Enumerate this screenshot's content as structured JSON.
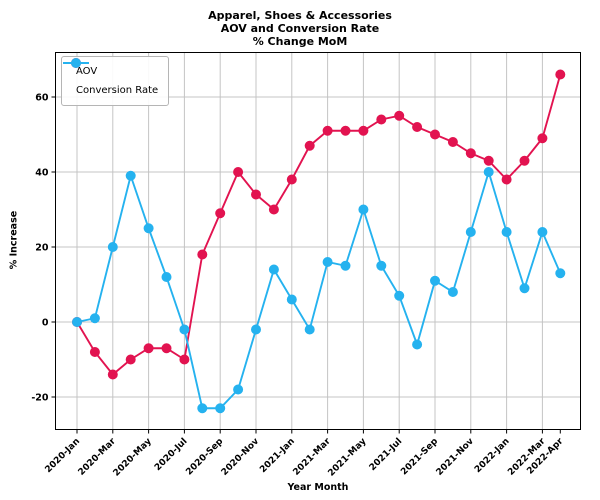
{
  "title": {
    "line1": "Apparel, Shoes & Accessories",
    "line2": "AOV and Conversion Rate",
    "line3": "% Change MoM"
  },
  "chart_data": {
    "type": "line",
    "title": "Apparel, Shoes & Accessories\nAOV and Conversion Rate\n% Change MoM",
    "xlabel": "Year Month",
    "ylabel": "% Increase",
    "x": [
      "2020-Jan",
      "2020-Feb",
      "2020-Mar",
      "2020-Apr",
      "2020-May",
      "2020-Jun",
      "2020-Jul",
      "2020-Aug",
      "2020-Sep",
      "2020-Oct",
      "2020-Nov",
      "2020-Dec",
      "2021-Jan",
      "2021-Feb",
      "2021-Mar",
      "2021-Apr",
      "2021-May",
      "2021-Jun",
      "2021-Jul",
      "2021-Aug",
      "2021-Sep",
      "2021-Oct",
      "2021-Nov",
      "2021-Dec",
      "2022-Jan",
      "2022-Feb",
      "2022-Mar",
      "2022-Apr"
    ],
    "x_tick_indices": [
      0,
      2,
      4,
      6,
      8,
      10,
      12,
      14,
      16,
      18,
      20,
      22,
      24,
      26,
      27
    ],
    "x_tick_labels": [
      "2020-Jan",
      "2020-Mar",
      "2020-May",
      "2020-Jul",
      "2020-Sep",
      "2020-Nov",
      "2021-Jan",
      "2021-Mar",
      "2021-May",
      "2021-Jul",
      "2021-Sep",
      "2021-Nov",
      "2022-Jan",
      "2022-Mar",
      "2022-Apr"
    ],
    "y_ticks": [
      -20,
      0,
      20,
      40,
      60
    ],
    "ylim": [
      -28.5,
      73
    ],
    "grid": true,
    "legend_position": "upper-left",
    "series": [
      {
        "name": "AOV",
        "color": "#e21350",
        "values": [
          0,
          -8,
          -14,
          -10,
          -7,
          -7,
          -10,
          18,
          29,
          40,
          34,
          30,
          38,
          47,
          51,
          51,
          51,
          54,
          55,
          52,
          50,
          48,
          45,
          43,
          38,
          43,
          49,
          66
        ]
      },
      {
        "name": "Conversion Rate",
        "color": "#25b2ef",
        "values": [
          0,
          1,
          20,
          39,
          25,
          12,
          -2,
          -23,
          -23,
          -18,
          -2,
          14,
          6,
          -2,
          16,
          15,
          30,
          15,
          7,
          -6,
          11,
          8,
          24,
          40,
          24,
          9,
          24,
          13
        ]
      }
    ]
  },
  "colors": {
    "grid": "#c4c4c4",
    "axis": "#000000",
    "background": "#ffffff",
    "aov": "#e21350",
    "conversion_rate": "#25b2ef"
  }
}
